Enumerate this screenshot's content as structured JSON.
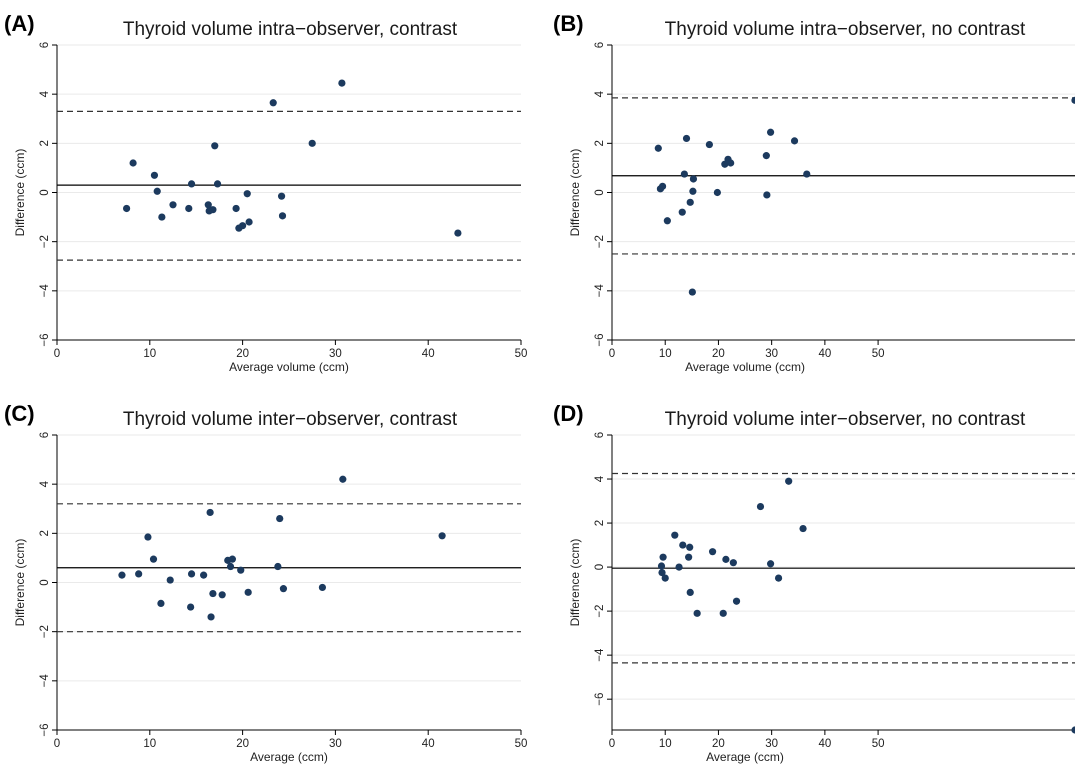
{
  "chart_data": [
    {
      "type": "scatter",
      "panel": "(A)",
      "title": "Thyroid volume intra−observer, contrast",
      "xlabel": "Average volume (ccm)",
      "ylabel": "Difference (ccm)",
      "xlim": [
        0,
        50
      ],
      "ylim": [
        -6,
        6
      ],
      "x_ticks": [
        0,
        10,
        20,
        30,
        40,
        50
      ],
      "y_ticks": [
        -6,
        -4,
        -2,
        0,
        2,
        4,
        6
      ],
      "grid": true,
      "mean_difference": 0.3,
      "limits_of_agreement": [
        -2.75,
        3.3
      ],
      "points": [
        [
          7.5,
          -0.65
        ],
        [
          8.2,
          1.2
        ],
        [
          10.5,
          0.7
        ],
        [
          10.8,
          0.05
        ],
        [
          11.3,
          -1.0
        ],
        [
          12.5,
          -0.5
        ],
        [
          14.2,
          -0.65
        ],
        [
          14.5,
          0.35
        ],
        [
          16.3,
          -0.5
        ],
        [
          16.4,
          -0.75
        ],
        [
          16.8,
          -0.7
        ],
        [
          17.0,
          1.9
        ],
        [
          17.3,
          0.35
        ],
        [
          19.3,
          -0.65
        ],
        [
          19.6,
          -1.45
        ],
        [
          20.0,
          -1.35
        ],
        [
          20.5,
          -0.05
        ],
        [
          20.7,
          -1.2
        ],
        [
          23.3,
          3.65
        ],
        [
          24.2,
          -0.15
        ],
        [
          24.3,
          -0.95
        ],
        [
          27.5,
          2.0
        ],
        [
          30.7,
          4.45
        ],
        [
          43.2,
          -1.65
        ]
      ]
    },
    {
      "type": "scatter",
      "panel": "(B)",
      "title": "Thyroid volume intra−observer, no contrast",
      "xlabel": "Average volume (ccm)",
      "ylabel": "Difference (ccm)",
      "xlim": [
        0,
        87
      ],
      "ylim": [
        -6,
        6
      ],
      "x_ticks": [
        0,
        10,
        20,
        30,
        40,
        50
      ],
      "y_ticks": [
        -6,
        -4,
        -2,
        0,
        2,
        4,
        6
      ],
      "grid": true,
      "mean_difference": 0.68,
      "limits_of_agreement": [
        -2.5,
        3.85
      ],
      "points": [
        [
          8.7,
          1.8
        ],
        [
          9.1,
          0.15
        ],
        [
          9.5,
          0.25
        ],
        [
          10.4,
          -1.15
        ],
        [
          13.2,
          -0.8
        ],
        [
          13.6,
          0.75
        ],
        [
          14.0,
          2.2
        ],
        [
          14.7,
          -0.4
        ],
        [
          15.1,
          -4.05
        ],
        [
          15.2,
          0.05
        ],
        [
          15.3,
          0.55
        ],
        [
          18.3,
          1.95
        ],
        [
          19.8,
          0.0
        ],
        [
          21.2,
          1.15
        ],
        [
          21.8,
          1.35
        ],
        [
          22.3,
          1.2
        ],
        [
          29.0,
          1.5
        ],
        [
          29.1,
          -0.1
        ],
        [
          29.8,
          2.45
        ],
        [
          34.3,
          2.1
        ],
        [
          36.6,
          0.75
        ],
        [
          87,
          3.75
        ]
      ]
    },
    {
      "type": "scatter",
      "panel": "(C)",
      "title": "Thyroid volume inter−observer, contrast",
      "xlabel": "Average (ccm)",
      "ylabel": "Difference (ccm)",
      "xlim": [
        0,
        50
      ],
      "ylim": [
        -6,
        6
      ],
      "x_ticks": [
        0,
        10,
        20,
        30,
        40,
        50
      ],
      "y_ticks": [
        -6,
        -4,
        -2,
        0,
        2,
        4,
        6
      ],
      "grid": true,
      "mean_difference": 0.6,
      "limits_of_agreement": [
        -2.0,
        3.2
      ],
      "points": [
        [
          7.0,
          0.3
        ],
        [
          8.8,
          0.35
        ],
        [
          9.8,
          1.85
        ],
        [
          10.4,
          0.95
        ],
        [
          11.2,
          -0.85
        ],
        [
          12.2,
          0.1
        ],
        [
          14.4,
          -1.0
        ],
        [
          14.5,
          0.35
        ],
        [
          15.8,
          0.3
        ],
        [
          16.5,
          2.85
        ],
        [
          16.6,
          -1.4
        ],
        [
          16.8,
          -0.45
        ],
        [
          17.8,
          -0.5
        ],
        [
          18.4,
          0.9
        ],
        [
          18.7,
          0.65
        ],
        [
          18.9,
          0.95
        ],
        [
          19.8,
          0.5
        ],
        [
          20.6,
          -0.4
        ],
        [
          23.8,
          0.65
        ],
        [
          24.0,
          2.6
        ],
        [
          24.4,
          -0.25
        ],
        [
          28.6,
          -0.2
        ],
        [
          30.8,
          4.2
        ],
        [
          41.5,
          1.9
        ]
      ]
    },
    {
      "type": "scatter",
      "panel": "(D)",
      "title": "Thyroid volume inter−observer, no contrast",
      "xlabel": "Average (ccm)",
      "ylabel": "Difference (ccm)",
      "xlim": [
        0,
        87
      ],
      "ylim": [
        -7.4,
        6
      ],
      "x_ticks": [
        0,
        10,
        20,
        30,
        40,
        50
      ],
      "y_ticks": [
        -6,
        -4,
        -2,
        0,
        2,
        4,
        6
      ],
      "grid": true,
      "mean_difference": -0.05,
      "limits_of_agreement": [
        -4.35,
        4.25
      ],
      "points": [
        [
          9.3,
          0.05
        ],
        [
          9.4,
          -0.25
        ],
        [
          9.6,
          0.45
        ],
        [
          10.0,
          -0.5
        ],
        [
          11.8,
          1.45
        ],
        [
          12.6,
          0.0
        ],
        [
          13.3,
          1.0
        ],
        [
          14.4,
          0.45
        ],
        [
          14.6,
          0.9
        ],
        [
          14.7,
          -1.15
        ],
        [
          16.0,
          -2.1
        ],
        [
          18.9,
          0.7
        ],
        [
          20.9,
          -2.1
        ],
        [
          21.4,
          0.35
        ],
        [
          22.8,
          0.2
        ],
        [
          23.4,
          -1.55
        ],
        [
          27.9,
          2.75
        ],
        [
          29.8,
          0.15
        ],
        [
          31.3,
          -0.5
        ],
        [
          33.2,
          3.9
        ],
        [
          35.9,
          1.75
        ],
        [
          87,
          -7.4
        ]
      ]
    }
  ]
}
